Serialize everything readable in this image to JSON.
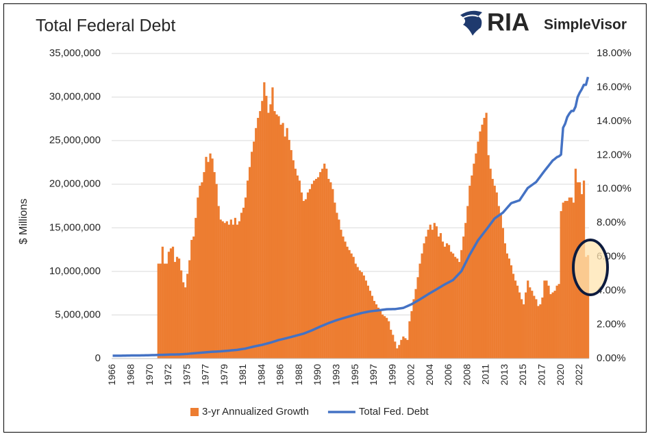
{
  "logo": {
    "brand": "RIA",
    "product": "SimpleVisor"
  },
  "chart_data": {
    "type": "combo",
    "title": "Total Federal Debt",
    "y_label": "$ Millions",
    "legend": "bottom",
    "grid": true,
    "ylim": [
      0,
      35000000
    ],
    "yticks": [
      0,
      {
        "value": 5000000,
        "label": "5,000,000"
      },
      {
        "value": 10000000,
        "label": "10,000,000"
      },
      {
        "value": 15000000,
        "label": "15,000,000"
      },
      {
        "value": 20000000,
        "label": "20,000,000"
      },
      {
        "value": 25000000,
        "label": "25,000,000"
      },
      {
        "value": 30000000,
        "label": "30,000,000"
      },
      {
        "value": 35000000,
        "label": "35,000,000"
      }
    ],
    "y2lim": [
      0,
      18
    ],
    "y2ticks": [
      {
        "value": 0,
        "label": "0.00%"
      },
      {
        "value": 2,
        "label": "2.00%"
      },
      {
        "value": 4,
        "label": "4.00%"
      },
      {
        "value": 6,
        "label": "6.00%"
      },
      {
        "value": 8,
        "label": "8.00%"
      },
      {
        "value": 10,
        "label": "10.00%"
      },
      {
        "value": 12,
        "label": "12.00%"
      },
      {
        "value": 14,
        "label": "14.00%"
      },
      {
        "value": 16,
        "label": "16.00%"
      },
      {
        "value": 18,
        "label": "18.00%"
      }
    ],
    "categories": [
      "1966",
      null,
      null,
      null,
      null,
      null,
      null,
      null,
      null,
      "1968",
      null,
      null,
      null,
      null,
      null,
      null,
      null,
      null,
      "1970",
      null,
      null,
      null,
      null,
      null,
      null,
      null,
      null,
      "1972",
      null,
      null,
      null,
      null,
      null,
      null,
      null,
      null,
      "1975",
      null,
      null,
      null,
      null,
      null,
      null,
      null,
      null,
      "1977",
      null,
      null,
      null,
      null,
      null,
      null,
      null,
      null,
      "1979",
      null,
      null,
      null,
      null,
      null,
      null,
      null,
      null,
      "1981",
      null,
      null,
      null,
      null,
      null,
      null,
      null,
      null,
      "1984",
      null,
      null,
      null,
      null,
      null,
      null,
      null,
      null,
      "1986",
      null,
      null,
      null,
      null,
      null,
      null,
      null,
      null,
      "1988",
      null,
      null,
      null,
      null,
      null,
      null,
      null,
      null,
      "1990",
      null,
      null,
      null,
      null,
      null,
      null,
      null,
      null,
      "1993",
      null,
      null,
      null,
      null,
      null,
      null,
      null,
      null,
      "1995",
      null,
      null,
      null,
      null,
      null,
      null,
      null,
      null,
      "1997",
      null,
      null,
      null,
      null,
      null,
      null,
      null,
      null,
      "1999",
      null,
      null,
      null,
      null,
      null,
      null,
      null,
      null,
      "2002",
      null,
      null,
      null,
      null,
      null,
      null,
      null,
      null,
      "2004",
      null,
      null,
      null,
      null,
      null,
      null,
      null,
      null,
      "2006",
      null,
      null,
      null,
      null,
      null,
      null,
      null,
      null,
      "2008",
      null,
      null,
      null,
      null,
      null,
      null,
      null,
      null,
      "2011",
      null,
      null,
      null,
      null,
      null,
      null,
      null,
      null,
      "2013",
      null,
      null,
      null,
      null,
      null,
      null,
      null,
      null,
      "2015",
      null,
      null,
      null,
      null,
      null,
      null,
      null,
      null,
      "2017",
      null,
      null,
      null,
      null,
      null,
      null,
      null,
      null,
      "2020",
      null,
      null,
      null,
      null,
      null,
      null,
      null,
      null,
      "2022",
      null,
      null,
      null,
      null
    ],
    "series": [
      {
        "name": "3-yr Annualized Growth",
        "type": "bar",
        "axis": "y2",
        "color": "#ed7d31",
        "values": [
          null,
          null,
          null,
          null,
          null,
          null,
          null,
          null,
          null,
          null,
          null,
          null,
          null,
          null,
          null,
          null,
          null,
          null,
          null,
          null,
          null,
          null,
          5.6,
          5.6,
          6.6,
          5.6,
          5.6,
          6.3,
          6.5,
          6.6,
          5.7,
          6.0,
          5.9,
          5.2,
          4.5,
          4.2,
          5.0,
          5.8,
          7.0,
          7.2,
          8.3,
          9.5,
          10.2,
          10.4,
          11.0,
          11.9,
          11.6,
          12.1,
          11.8,
          11.0,
          10.3,
          9.0,
          8.2,
          8.1,
          8.0,
          8.1,
          7.9,
          8.2,
          7.9,
          8.3,
          7.9,
          8.1,
          8.6,
          8.9,
          9.5,
          10.5,
          11.3,
          12.2,
          12.8,
          13.6,
          14.2,
          14.6,
          15.2,
          16.3,
          15.5,
          14.5,
          15.0,
          16.0,
          14.6,
          14.4,
          14.3,
          13.8,
          13.9,
          13.1,
          13.6,
          12.9,
          12.3,
          11.7,
          11.2,
          10.8,
          10.5,
          9.8,
          9.3,
          9.4,
          9.8,
          10.0,
          10.3,
          10.5,
          10.6,
          10.7,
          11.0,
          11.2,
          11.5,
          11.2,
          10.6,
          10.4,
          10.0,
          9.2,
          8.6,
          8.2,
          7.6,
          7.2,
          6.9,
          6.6,
          6.4,
          6.2,
          6.0,
          5.6,
          5.4,
          5.2,
          5.1,
          4.9,
          4.6,
          4.3,
          4.0,
          3.7,
          3.4,
          3.2,
          3.0,
          2.8,
          2.6,
          2.5,
          2.4,
          2.2,
          1.7,
          1.4,
          1.0,
          0.6,
          0.8,
          1.1,
          1.3,
          1.2,
          1.1,
          2.2,
          2.8,
          3.5,
          4.1,
          4.8,
          5.6,
          6.2,
          6.8,
          7.2,
          7.6,
          7.9,
          7.6,
          8.0,
          7.8,
          7.2,
          7.4,
          6.9,
          6.6,
          6.8,
          6.7,
          6.3,
          6.2,
          6.0,
          5.9,
          5.7,
          6.4,
          7.2,
          8.0,
          9.0,
          10.2,
          10.8,
          11.5,
          12.1,
          12.8,
          13.4,
          13.8,
          14.2,
          14.5,
          12.0,
          11.2,
          10.6,
          10.2,
          9.8,
          9.0,
          8.5,
          7.7,
          6.8,
          6.2,
          5.9,
          5.5,
          5.0,
          4.6,
          4.3,
          3.9,
          3.5,
          3.2,
          3.9,
          4.6,
          4.2,
          4.0,
          3.7,
          3.5,
          3.1,
          3.2,
          3.6,
          4.6,
          4.6,
          4.3,
          3.8,
          3.9,
          4.0,
          4.3,
          4.4,
          8.7,
          9.2,
          9.3,
          9.3,
          9.5,
          9.5,
          9.2,
          11.2,
          10.4,
          10.4,
          9.7,
          10.5,
          6.0,
          6.1
        ]
      },
      {
        "name": "Total Fed. Debt",
        "type": "line",
        "axis": "y",
        "color": "#4472c4",
        "values": [
          320000,
          322000,
          323000,
          325000,
          326000,
          331000,
          337000,
          343000,
          348000,
          350000,
          351000,
          353000,
          354000,
          358000,
          363000,
          367000,
          371000,
          378000,
          385000,
          391000,
          398000,
          405000,
          413000,
          420000,
          427000,
          435000,
          443000,
          450000,
          458000,
          462000,
          466000,
          471000,
          475000,
          490000,
          504000,
          519000,
          533000,
          555000,
          577000,
          598000,
          620000,
          640000,
          660000,
          679000,
          699000,
          717000,
          736000,
          754000,
          772000,
          786000,
          800000,
          813000,
          827000,
          847000,
          868000,
          888000,
          908000,
          930000,
          952000,
          973000,
          995000,
          1032000,
          1069000,
          1105000,
          1142000,
          1201000,
          1260000,
          1318000,
          1377000,
          1426000,
          1475000,
          1523000,
          1572000,
          1635000,
          1698000,
          1760000,
          1823000,
          1899000,
          1974000,
          2050000,
          2125000,
          2181000,
          2238000,
          2294000,
          2350000,
          2413000,
          2476000,
          2539000,
          2602000,
          2666000,
          2730000,
          2793000,
          2857000,
          2951000,
          3045000,
          3139000,
          3233000,
          3341000,
          3449000,
          3557000,
          3665000,
          3765000,
          3865000,
          3965000,
          4065000,
          4152000,
          4238000,
          4325000,
          4411000,
          4482000,
          4552000,
          4623000,
          4693000,
          4763000,
          4834000,
          4904000,
          4974000,
          5037000,
          5100000,
          5162000,
          5225000,
          5272000,
          5319000,
          5366000,
          5413000,
          5441000,
          5470000,
          5498000,
          5526000,
          5559000,
          5591000,
          5624000,
          5656000,
          5661000,
          5665000,
          5670000,
          5674000,
          5707000,
          5741000,
          5774000,
          5807000,
          5912000,
          6018000,
          6123000,
          6228000,
          6367000,
          6506000,
          6644000,
          6783000,
          6932000,
          7081000,
          7230000,
          7379000,
          7518000,
          7656000,
          7795000,
          7933000,
          8077000,
          8220000,
          8364000,
          8507000,
          8632000,
          8758000,
          8883000,
          9008000,
          9262000,
          9517000,
          9771000,
          10025000,
          10496000,
          10968000,
          11439000,
          11910000,
          12323000,
          12736000,
          13149000,
          13562000,
          13869000,
          14176000,
          14483000,
          14790000,
          15109000,
          15428000,
          15747000,
          16066000,
          16234000,
          16402000,
          16570000,
          16738000,
          17010000,
          17281000,
          17553000,
          17824000,
          17906000,
          17988000,
          18069000,
          18151000,
          18507000,
          18862000,
          19218000,
          19573000,
          19741000,
          19909000,
          20077000,
          20245000,
          20563000,
          20880000,
          21198000,
          21516000,
          21817000,
          22117000,
          22418000,
          22719000,
          22900000,
          23100000,
          23200000,
          23400000,
          26477000,
          26945000,
          27700000,
          28100000,
          28400000,
          28400000,
          28900000,
          30000000,
          30500000,
          30900000,
          31400000,
          31400000,
          32300000
        ]
      }
    ]
  }
}
